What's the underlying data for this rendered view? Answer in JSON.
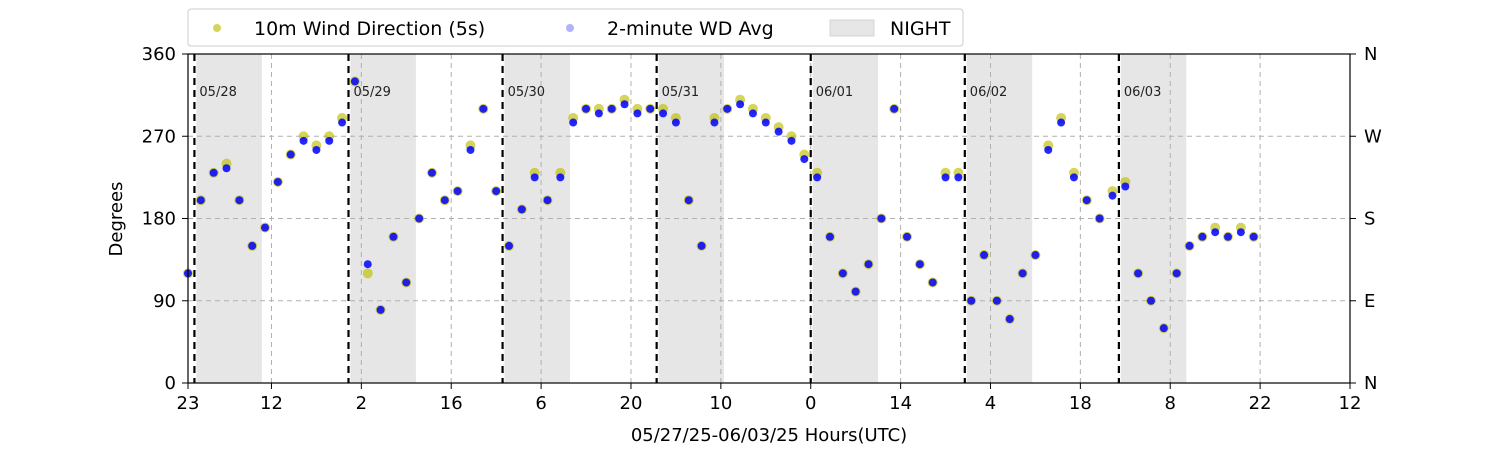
{
  "chart_data": {
    "type": "scatter",
    "xlabel": "05/27/25-06/03/25  Hours(UTC)",
    "ylabel": "Degrees",
    "ylim": [
      0,
      360
    ],
    "x_range_hours": [
      0,
      181
    ],
    "x_tick_labels": [
      "23",
      "12",
      "2",
      "16",
      "6",
      "20",
      "10",
      "0",
      "14",
      "4",
      "18",
      "8",
      "22",
      "12"
    ],
    "x_tick_hours": [
      0,
      13,
      27,
      41,
      55,
      69,
      83,
      97,
      111,
      125,
      139,
      153,
      167,
      181
    ],
    "y_ticks": [
      0,
      90,
      180,
      270,
      360
    ],
    "y_tick_labels": [
      "0",
      "90",
      "180",
      "270",
      "360"
    ],
    "right_y_tick_labels": [
      "N",
      "E",
      "S",
      "W",
      "N"
    ],
    "grid": true,
    "legend_position": "top",
    "legend": [
      {
        "label": "10m Wind Direction (5s)",
        "kind": "marker",
        "color": "#bfbf00"
      },
      {
        "label": "2-minute WD Avg",
        "kind": "marker",
        "color": "#0000ff"
      },
      {
        "label": "NIGHT",
        "kind": "patch",
        "color": "#e6e6e6"
      }
    ],
    "day_markers": [
      {
        "label": "05/28",
        "hour": 1
      },
      {
        "label": "05/29",
        "hour": 25
      },
      {
        "label": "05/30",
        "hour": 49
      },
      {
        "label": "05/31",
        "hour": 73
      },
      {
        "label": "06/01",
        "hour": 97
      },
      {
        "label": "06/02",
        "hour": 121
      },
      {
        "label": "06/03",
        "hour": 145
      }
    ],
    "night_spans": [
      [
        1.3,
        11.5
      ],
      [
        25.3,
        35.5
      ],
      [
        49.3,
        59.5
      ],
      [
        73.3,
        83.5
      ],
      [
        97.3,
        107.5
      ],
      [
        121.3,
        131.5
      ],
      [
        145.3,
        155.5
      ]
    ],
    "series": [
      {
        "name": "10m Wind Direction (5s)",
        "color": "#bfbf00",
        "x_hours": [
          0,
          2,
          4,
          6,
          8,
          10,
          12,
          14,
          16,
          18,
          20,
          22,
          24,
          26,
          28,
          30,
          32,
          34,
          36,
          38,
          40,
          42,
          44,
          46,
          48,
          50,
          52,
          54,
          56,
          58,
          60,
          62,
          64,
          66,
          68,
          70,
          72,
          74,
          76,
          78,
          80,
          82,
          84,
          86,
          88,
          90,
          92,
          94,
          96,
          98,
          100,
          102,
          104,
          106,
          108,
          110,
          112,
          114,
          116,
          118,
          120,
          122,
          124,
          126,
          128,
          130,
          132,
          134,
          136,
          138,
          140,
          142,
          144,
          146,
          148,
          150,
          152,
          154,
          156,
          158,
          160,
          162,
          164,
          166
        ],
        "values": [
          120,
          200,
          230,
          240,
          200,
          150,
          170,
          220,
          250,
          270,
          260,
          270,
          290,
          330,
          120,
          80,
          160,
          110,
          180,
          230,
          200,
          210,
          260,
          300,
          210,
          150,
          190,
          230,
          200,
          230,
          290,
          300,
          300,
          300,
          310,
          300,
          300,
          300,
          290,
          200,
          150,
          290,
          300,
          310,
          300,
          290,
          280,
          270,
          250,
          230,
          160,
          120,
          100,
          130,
          180,
          300,
          160,
          130,
          110,
          230,
          230,
          90,
          140,
          90,
          70,
          120,
          140,
          260,
          290,
          230,
          200,
          180,
          210,
          220,
          120,
          90,
          60,
          120,
          150,
          160,
          170,
          160,
          170,
          160
        ]
      },
      {
        "name": "2-minute WD Avg",
        "color": "#0000ff",
        "x_hours": [
          0,
          2,
          4,
          6,
          8,
          10,
          12,
          14,
          16,
          18,
          20,
          22,
          24,
          26,
          28,
          30,
          32,
          34,
          36,
          38,
          40,
          42,
          44,
          46,
          48,
          50,
          52,
          54,
          56,
          58,
          60,
          62,
          64,
          66,
          68,
          70,
          72,
          74,
          76,
          78,
          80,
          82,
          84,
          86,
          88,
          90,
          92,
          94,
          96,
          98,
          100,
          102,
          104,
          106,
          108,
          110,
          112,
          114,
          116,
          118,
          120,
          122,
          124,
          126,
          128,
          130,
          132,
          134,
          136,
          138,
          140,
          142,
          144,
          146,
          148,
          150,
          152,
          154,
          156,
          158,
          160,
          162,
          164,
          166
        ],
        "values": [
          120,
          200,
          230,
          235,
          200,
          150,
          170,
          220,
          250,
          265,
          255,
          265,
          285,
          330,
          130,
          80,
          160,
          110,
          180,
          230,
          200,
          210,
          255,
          300,
          210,
          150,
          190,
          225,
          200,
          225,
          285,
          300,
          295,
          300,
          305,
          295,
          300,
          295,
          285,
          200,
          150,
          285,
          300,
          305,
          295,
          285,
          275,
          265,
          245,
          225,
          160,
          120,
          100,
          130,
          180,
          300,
          160,
          130,
          110,
          225,
          225,
          90,
          140,
          90,
          70,
          120,
          140,
          255,
          285,
          225,
          200,
          180,
          205,
          215,
          120,
          90,
          60,
          120,
          150,
          160,
          165,
          160,
          165,
          160
        ]
      }
    ]
  }
}
